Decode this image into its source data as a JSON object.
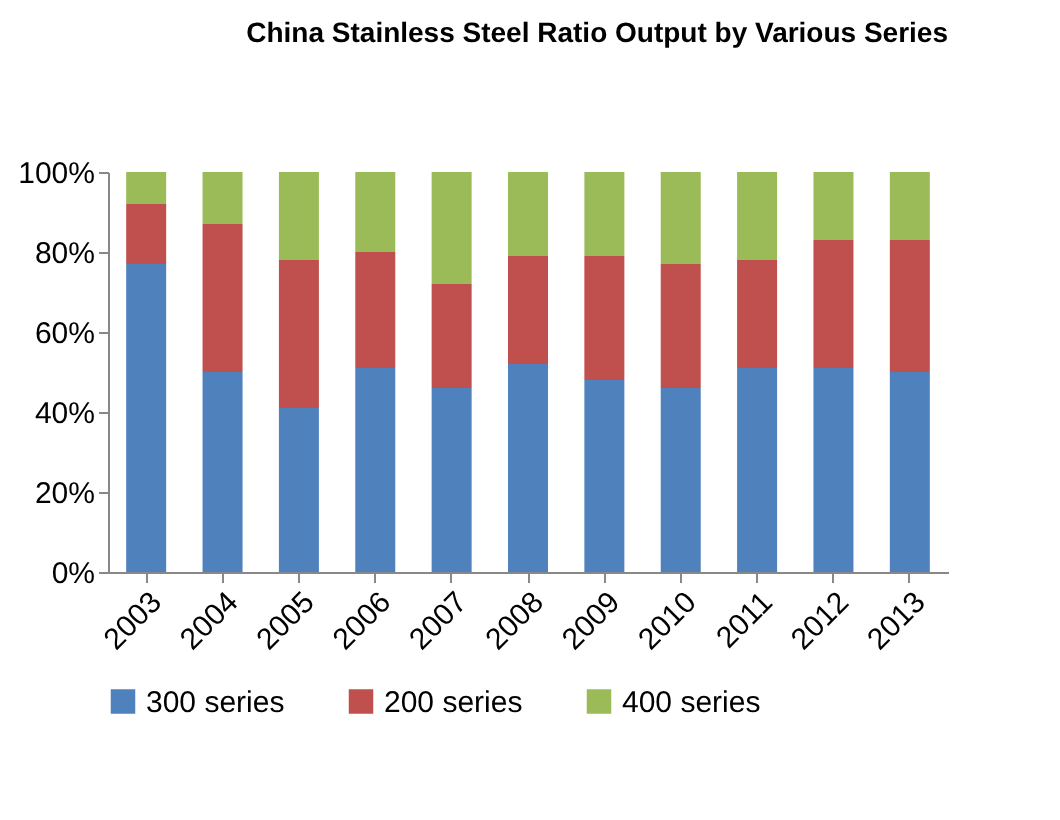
{
  "chart_data": {
    "type": "bar",
    "title": "China Stainless Steel Ratio Output by Various Series",
    "stacked": true,
    "categories": [
      "2003",
      "2004",
      "2005",
      "2006",
      "2007",
      "2008",
      "2009",
      "2010",
      "2011",
      "2012",
      "2013"
    ],
    "series": [
      {
        "name": "300 series",
        "color": "#4f81bd",
        "values": [
          77,
          50,
          41,
          51,
          46,
          52,
          48,
          46,
          51,
          51,
          50
        ]
      },
      {
        "name": "200 series",
        "color": "#c0504d",
        "values": [
          15,
          37,
          37,
          29,
          26,
          27,
          31,
          31,
          27,
          32,
          33
        ]
      },
      {
        "name": "400 series",
        "color": "#9bbb59",
        "values": [
          8,
          13,
          22,
          20,
          28,
          21,
          21,
          23,
          22,
          17,
          17
        ]
      }
    ],
    "ylim": [
      0,
      100
    ],
    "yticks": [
      {
        "value": 0,
        "label": "0%"
      },
      {
        "value": 20,
        "label": "20%"
      },
      {
        "value": 40,
        "label": "40%"
      },
      {
        "value": 60,
        "label": "60%"
      },
      {
        "value": 80,
        "label": "80%"
      },
      {
        "value": 100,
        "label": "100%"
      }
    ],
    "legend": "bottom",
    "grid": false
  }
}
